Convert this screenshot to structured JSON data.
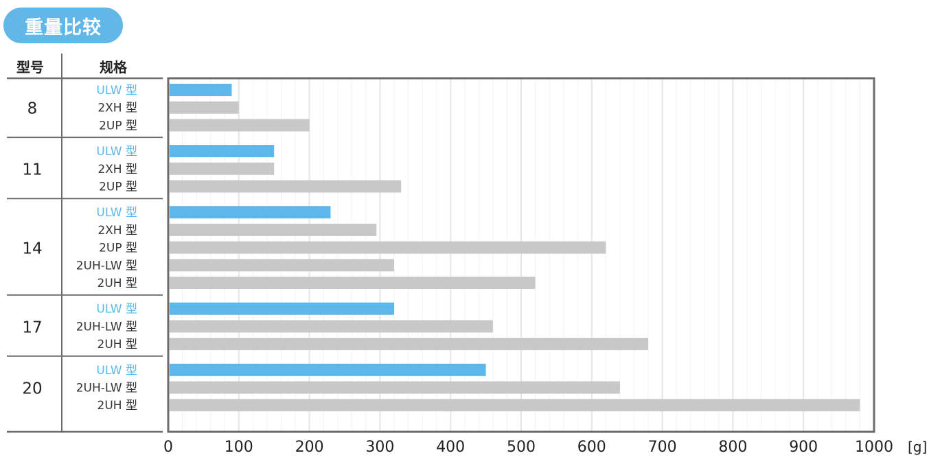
{
  "title": "重量比较",
  "headers": {
    "model": "型号",
    "spec": "规格"
  },
  "unit": "[g]",
  "colors": {
    "highlight": "#5db7e8",
    "other": "#c8c8c8",
    "frame": "#6b6b6b",
    "grid": "#e6e6e6"
  },
  "chart_data": {
    "type": "bar",
    "orientation": "horizontal",
    "xlim": [
      0,
      1000
    ],
    "xticks": [
      "0",
      "100",
      "200",
      "300",
      "400",
      "500",
      "600",
      "700",
      "800",
      "900",
      "1000"
    ],
    "xlabel": "[g]",
    "grid": true,
    "groups": [
      {
        "model": "8",
        "bars": [
          {
            "label": "ULW 型",
            "value": 90,
            "highlight": true
          },
          {
            "label": "2XH 型",
            "value": 100,
            "highlight": false
          },
          {
            "label": "2UP 型",
            "value": 200,
            "highlight": false
          }
        ]
      },
      {
        "model": "11",
        "bars": [
          {
            "label": "ULW 型",
            "value": 150,
            "highlight": true
          },
          {
            "label": "2XH 型",
            "value": 150,
            "highlight": false
          },
          {
            "label": "2UP 型",
            "value": 330,
            "highlight": false
          }
        ]
      },
      {
        "model": "14",
        "bars": [
          {
            "label": "ULW 型",
            "value": 230,
            "highlight": true
          },
          {
            "label": "2XH 型",
            "value": 295,
            "highlight": false
          },
          {
            "label": "2UP 型",
            "value": 620,
            "highlight": false
          },
          {
            "label": "2UH-LW 型",
            "value": 320,
            "highlight": false
          },
          {
            "label": "2UH 型",
            "value": 520,
            "highlight": false
          }
        ]
      },
      {
        "model": "17",
        "bars": [
          {
            "label": "ULW 型",
            "value": 320,
            "highlight": true
          },
          {
            "label": "2UH-LW 型",
            "value": 460,
            "highlight": false
          },
          {
            "label": "2UH 型",
            "value": 680,
            "highlight": false
          }
        ]
      },
      {
        "model": "20",
        "bars": [
          {
            "label": "ULW 型",
            "value": 450,
            "highlight": true
          },
          {
            "label": "2UH-LW 型",
            "value": 640,
            "highlight": false
          },
          {
            "label": "2UH 型",
            "value": 980,
            "highlight": false
          }
        ]
      }
    ]
  }
}
